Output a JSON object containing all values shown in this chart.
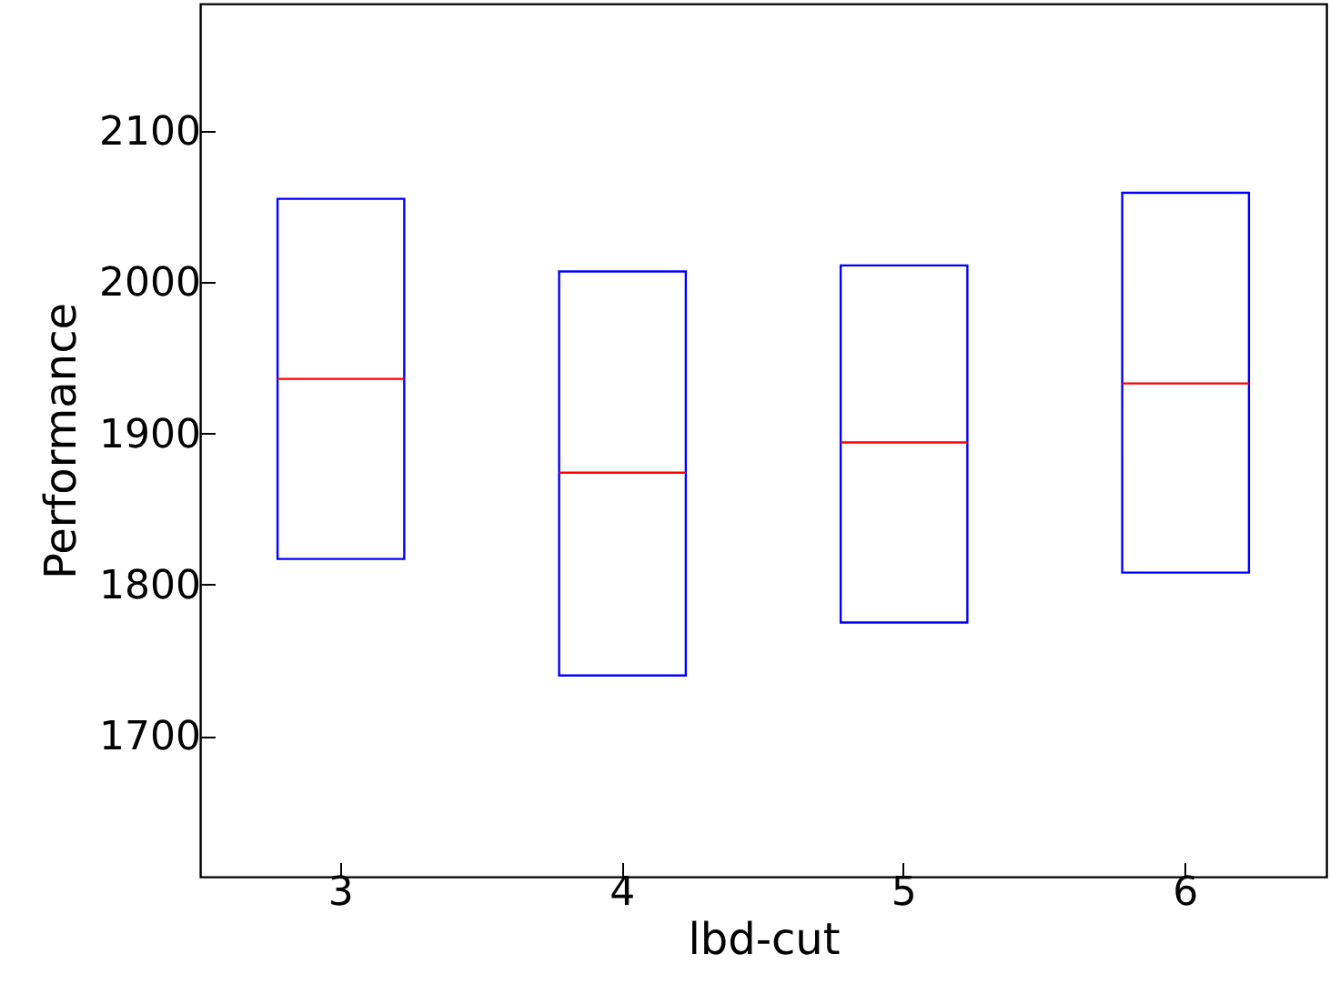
{
  "chart_data": {
    "type": "box",
    "xlabel": "lbd-cut",
    "ylabel": "Performance",
    "categories": [
      "3",
      "4",
      "5",
      "6"
    ],
    "color": "#0000ff",
    "boxes": [
      {
        "low": 1817,
        "q1": 1817,
        "median": 1936,
        "q3": 2055,
        "high": 2055
      },
      {
        "low": 1740,
        "q1": 1740,
        "median": 1874,
        "q3": 2007,
        "high": 2007
      },
      {
        "low": 1775,
        "q1": 1775,
        "median": 1894,
        "q3": 2011,
        "high": 2011
      },
      {
        "low": 1808,
        "q1": 1808,
        "median": 1933,
        "q3": 2059,
        "high": 2059
      }
    ],
    "ylim": [
      1607,
      2184
    ],
    "yticks": [
      1700,
      1800,
      1900,
      2000,
      2100
    ],
    "grid": false
  }
}
